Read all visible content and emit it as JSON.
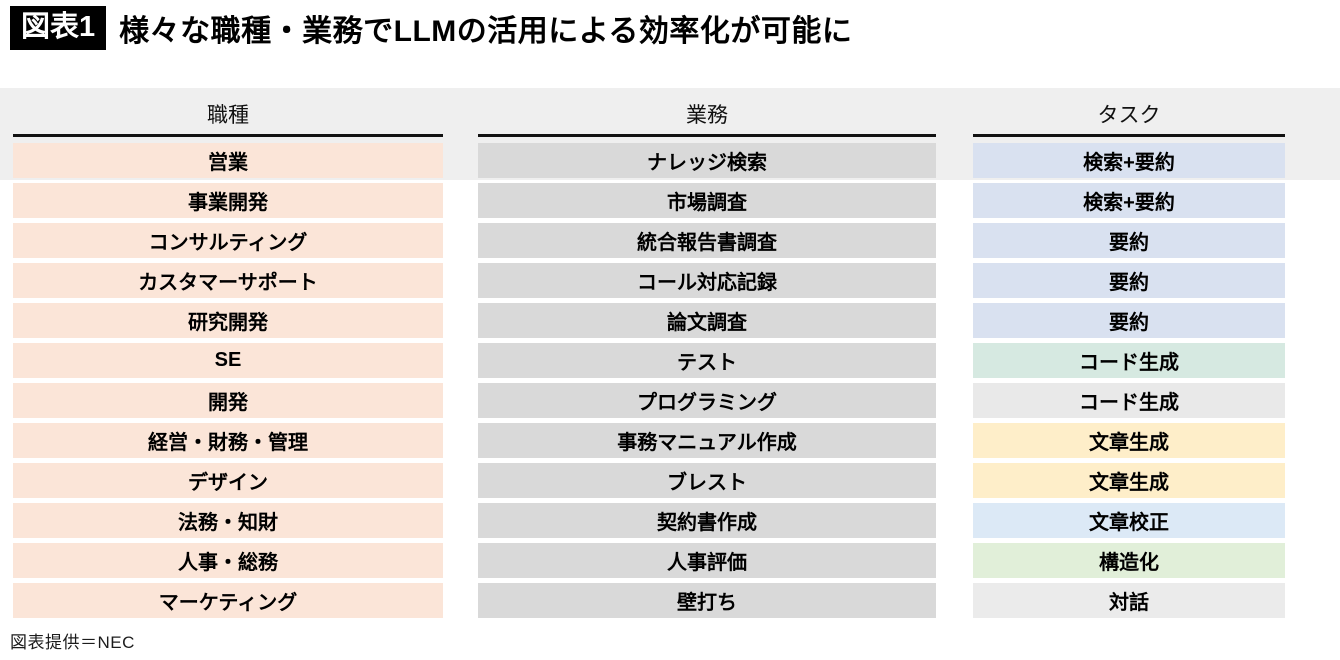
{
  "title": {
    "badge": "図表1",
    "text": "様々な職種・業務でLLMの活用による効率化が可能に"
  },
  "colors": {
    "badge_bg": "#000000",
    "band_bg": "#efefef",
    "role_bg": "#fbe5d8",
    "operation_bg": "#d9d9d9",
    "task_blue": "#d9e1f0",
    "task_teal": "#d6e9e1",
    "task_gray": "#e9e9e9",
    "task_yellow": "#feeec9",
    "task_lightblue": "#dce9f6",
    "task_green": "#e1efd9",
    "task_lightgray": "#ebebeb"
  },
  "columns": [
    {
      "header": "職種"
    },
    {
      "header": "業務"
    },
    {
      "header": "タスク"
    }
  ],
  "rows": [
    {
      "role": "営業",
      "operation": "ナレッジ検索",
      "task": "検索+要約",
      "task_color": "#d9e1f0"
    },
    {
      "role": "事業開発",
      "operation": "市場調査",
      "task": "検索+要約",
      "task_color": "#d9e1f0"
    },
    {
      "role": "コンサルティング",
      "operation": "統合報告書調査",
      "task": "要約",
      "task_color": "#d9e1f0"
    },
    {
      "role": "カスタマーサポート",
      "operation": "コール対応記録",
      "task": "要約",
      "task_color": "#d9e1f0"
    },
    {
      "role": "研究開発",
      "operation": "論文調査",
      "task": "要約",
      "task_color": "#d9e1f0"
    },
    {
      "role": "SE",
      "operation": "テスト",
      "task": "コード生成",
      "task_color": "#d6e9e1"
    },
    {
      "role": "開発",
      "operation": "プログラミング",
      "task": "コード生成",
      "task_color": "#e9e9e9"
    },
    {
      "role": "経営・財務・管理",
      "operation": "事務マニュアル作成",
      "task": "文章生成",
      "task_color": "#feeec9"
    },
    {
      "role": "デザイン",
      "operation": "ブレスト",
      "task": "文章生成",
      "task_color": "#feeec9"
    },
    {
      "role": "法務・知財",
      "operation": "契約書作成",
      "task": "文章校正",
      "task_color": "#dce9f6"
    },
    {
      "role": "人事・総務",
      "operation": "人事評価",
      "task": "構造化",
      "task_color": "#e1efd9"
    },
    {
      "role": "マーケティング",
      "operation": "壁打ち",
      "task": "対話",
      "task_color": "#ebebeb"
    }
  ],
  "footer": {
    "credit": "図表提供＝NEC"
  }
}
